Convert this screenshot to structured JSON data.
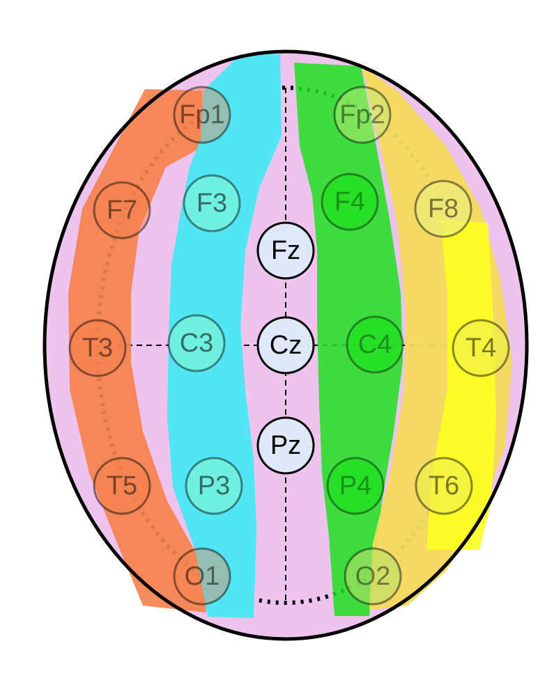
{
  "colors": {
    "scalp": "#eec4ee",
    "outline": "#000000",
    "electrode_fill_midline": "#dfe8f8",
    "left_lateral": "#f5814a",
    "left_parasagittal": "#52e6f5",
    "right_parasagittal": "#1fe01f",
    "right_lateral_outer": "#f3da5a",
    "right_lateral_inner": "#ffff22"
  },
  "electrodes": {
    "fp1": "Fp1",
    "fp2": "Fp2",
    "f7": "F7",
    "f3": "F3",
    "fz": "Fz",
    "f4": "F4",
    "f8": "F8",
    "t3": "T3",
    "c3": "C3",
    "cz": "Cz",
    "c4": "C4",
    "t4": "T4",
    "t5": "T5",
    "p3": "P3",
    "pz": "Pz",
    "p4": "P4",
    "t6": "T6",
    "o1": "O1",
    "o2": "O2"
  }
}
